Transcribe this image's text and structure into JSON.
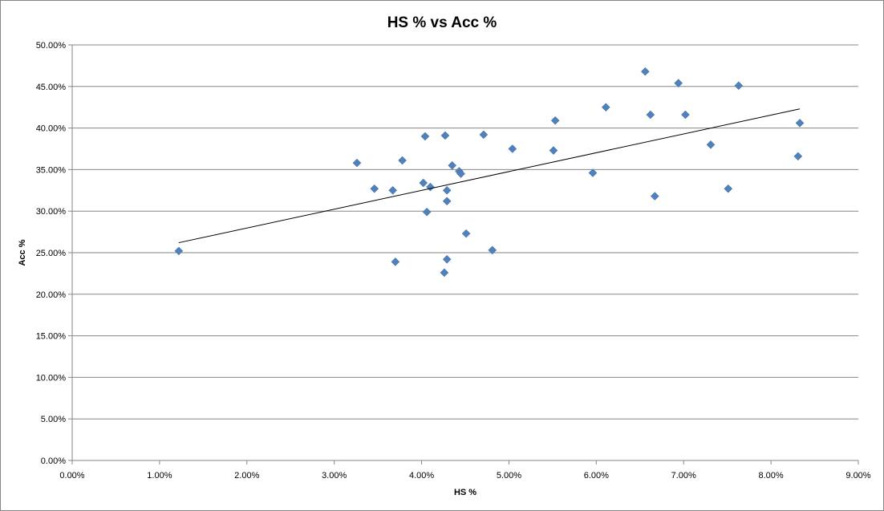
{
  "chart_data": {
    "type": "scatter",
    "title": "HS % vs Acc %",
    "xlabel": "HS %",
    "ylabel": "Acc %",
    "xlim": [
      0,
      0.09
    ],
    "ylim": [
      0,
      0.5
    ],
    "x_ticks": [
      "0.00%",
      "1.00%",
      "2.00%",
      "3.00%",
      "4.00%",
      "5.00%",
      "6.00%",
      "7.00%",
      "8.00%",
      "9.00%"
    ],
    "y_ticks": [
      "0.00%",
      "5.00%",
      "10.00%",
      "15.00%",
      "20.00%",
      "25.00%",
      "30.00%",
      "35.00%",
      "40.00%",
      "45.00%",
      "50.00%"
    ],
    "grid": "horizontal",
    "legend": "none",
    "marker": "diamond",
    "colors": {
      "marker": "#4F81BD",
      "trendline": "#000000",
      "grid": "#868686"
    },
    "points": [
      {
        "x": 0.0122,
        "y": 0.252
      },
      {
        "x": 0.0326,
        "y": 0.358
      },
      {
        "x": 0.0346,
        "y": 0.327
      },
      {
        "x": 0.0367,
        "y": 0.325
      },
      {
        "x": 0.037,
        "y": 0.239
      },
      {
        "x": 0.0378,
        "y": 0.361
      },
      {
        "x": 0.0402,
        "y": 0.334
      },
      {
        "x": 0.0404,
        "y": 0.39
      },
      {
        "x": 0.0406,
        "y": 0.299
      },
      {
        "x": 0.041,
        "y": 0.329
      },
      {
        "x": 0.0426,
        "y": 0.226
      },
      {
        "x": 0.0427,
        "y": 0.391
      },
      {
        "x": 0.0429,
        "y": 0.242
      },
      {
        "x": 0.0429,
        "y": 0.325
      },
      {
        "x": 0.0429,
        "y": 0.312
      },
      {
        "x": 0.0435,
        "y": 0.355
      },
      {
        "x": 0.0443,
        "y": 0.348
      },
      {
        "x": 0.0445,
        "y": 0.345
      },
      {
        "x": 0.0451,
        "y": 0.273
      },
      {
        "x": 0.0471,
        "y": 0.392
      },
      {
        "x": 0.0481,
        "y": 0.253
      },
      {
        "x": 0.0504,
        "y": 0.375
      },
      {
        "x": 0.0551,
        "y": 0.373
      },
      {
        "x": 0.0553,
        "y": 0.409
      },
      {
        "x": 0.0596,
        "y": 0.346
      },
      {
        "x": 0.0611,
        "y": 0.425
      },
      {
        "x": 0.0656,
        "y": 0.468
      },
      {
        "x": 0.0662,
        "y": 0.416
      },
      {
        "x": 0.0667,
        "y": 0.318
      },
      {
        "x": 0.0694,
        "y": 0.454
      },
      {
        "x": 0.0702,
        "y": 0.416
      },
      {
        "x": 0.0731,
        "y": 0.38
      },
      {
        "x": 0.0751,
        "y": 0.327
      },
      {
        "x": 0.0763,
        "y": 0.451
      },
      {
        "x": 0.0831,
        "y": 0.366
      },
      {
        "x": 0.0833,
        "y": 0.406
      }
    ],
    "trendline": {
      "type": "linear",
      "x": [
        0.0122,
        0.0833
      ],
      "y": [
        0.262,
        0.423
      ]
    }
  }
}
